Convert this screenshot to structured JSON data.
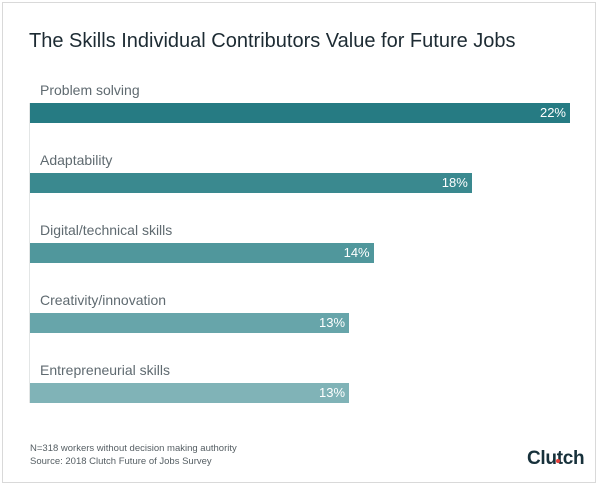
{
  "chart_data": {
    "type": "bar",
    "orientation": "horizontal",
    "title": "The Skills Individual Contributors Value for Future Jobs",
    "categories": [
      "Problem solving",
      "Adaptability",
      "Digital/technical skills",
      "Creativity/innovation",
      "Entrepreneurial skills"
    ],
    "values": [
      22,
      18,
      14,
      13,
      13
    ],
    "value_labels": [
      "22%",
      "18%",
      "14%",
      "13%",
      "13%"
    ],
    "colors": [
      "#267b83",
      "#3a898f",
      "#50979c",
      "#67a5aa",
      "#80b3b7"
    ],
    "xlim": [
      0,
      22
    ],
    "grid": false
  },
  "footnote": {
    "sample": "N=318 workers without decision making authority",
    "source": "Source: 2018 Clutch Future of Jobs Survey"
  },
  "logo": "Clutch"
}
